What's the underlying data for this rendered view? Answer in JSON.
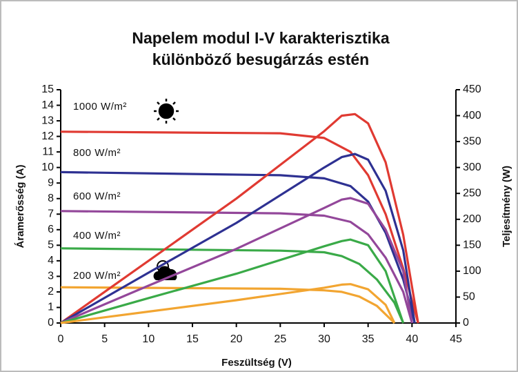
{
  "chart_data": {
    "type": "line",
    "title": [
      "Napelem modul I-V karakterisztika",
      "különböző besugárzás estén"
    ],
    "xlabel": "Feszültség (V)",
    "ylabel": "Áramerősség (A)",
    "y2label": "Teljesítmény (W)",
    "xlim": [
      0,
      45
    ],
    "xticks": [
      0,
      5,
      10,
      15,
      20,
      25,
      30,
      35,
      40,
      45
    ],
    "ylim": [
      0,
      15
    ],
    "yticks": [
      0,
      1,
      2,
      3,
      4,
      5,
      6,
      7,
      8,
      9,
      10,
      11,
      12,
      13,
      14,
      15
    ],
    "y2lim": [
      0,
      450
    ],
    "y2ticks": [
      0,
      50,
      100,
      150,
      200,
      250,
      300,
      350,
      400,
      450
    ],
    "grid": false,
    "series": [
      {
        "name": "1000 W/m²",
        "color": "#e03a32",
        "x": [
          0,
          25,
          30,
          33,
          35,
          37,
          39,
          40.7
        ],
        "values": [
          12.3,
          12.2,
          11.9,
          11.0,
          9.5,
          7.0,
          3.5,
          0
        ]
      },
      {
        "name": "800 W/m²",
        "color": "#2e3192",
        "x": [
          0,
          25,
          30,
          33,
          35,
          37,
          39,
          40.3
        ],
        "values": [
          9.7,
          9.5,
          9.3,
          8.8,
          7.8,
          5.8,
          2.8,
          0
        ]
      },
      {
        "name": "600 W/m²",
        "color": "#93479a",
        "x": [
          0,
          25,
          30,
          33,
          35,
          37,
          39,
          40
        ],
        "values": [
          7.2,
          7.05,
          6.9,
          6.5,
          5.7,
          4.2,
          2.0,
          0
        ]
      },
      {
        "name": "400 W/m²",
        "color": "#3aaa48",
        "x": [
          0,
          25,
          30,
          32,
          34,
          36,
          38,
          39
        ],
        "values": [
          4.8,
          4.65,
          4.55,
          4.3,
          3.8,
          2.8,
          1.3,
          0
        ]
      },
      {
        "name": "200 W/m²",
        "color": "#f2a531",
        "x": [
          0,
          25,
          30,
          32,
          34,
          36,
          38
        ],
        "values": [
          2.3,
          2.2,
          2.1,
          2.0,
          1.7,
          1.1,
          0
        ]
      },
      {
        "color": "#e03a32",
        "axis": "y2",
        "x": [
          0,
          10,
          20,
          30,
          32,
          33.5,
          35,
          37,
          39,
          40.7
        ],
        "values": [
          0,
          120,
          240,
          370,
          400,
          403,
          385,
          310,
          170,
          0
        ]
      },
      {
        "color": "#2e3192",
        "axis": "y2",
        "x": [
          0,
          10,
          20,
          30,
          32,
          33.5,
          35,
          37,
          39,
          40.3
        ],
        "values": [
          0,
          97,
          193,
          300,
          320,
          326,
          315,
          255,
          140,
          0
        ]
      },
      {
        "color": "#93479a",
        "axis": "y2",
        "x": [
          0,
          10,
          20,
          30,
          32,
          33,
          35,
          37,
          39,
          40
        ],
        "values": [
          0,
          72,
          143,
          222,
          238,
          241,
          230,
          180,
          100,
          0
        ]
      },
      {
        "color": "#3aaa48",
        "axis": "y2",
        "x": [
          0,
          10,
          20,
          30,
          32,
          33,
          35,
          37,
          39
        ],
        "values": [
          0,
          48,
          95,
          148,
          158,
          161,
          150,
          100,
          0
        ]
      },
      {
        "color": "#f2a531",
        "axis": "y2",
        "x": [
          0,
          10,
          20,
          30,
          32,
          33,
          35,
          37,
          38
        ],
        "values": [
          0,
          22,
          44,
          68,
          74,
          75,
          65,
          35,
          0
        ]
      }
    ]
  }
}
